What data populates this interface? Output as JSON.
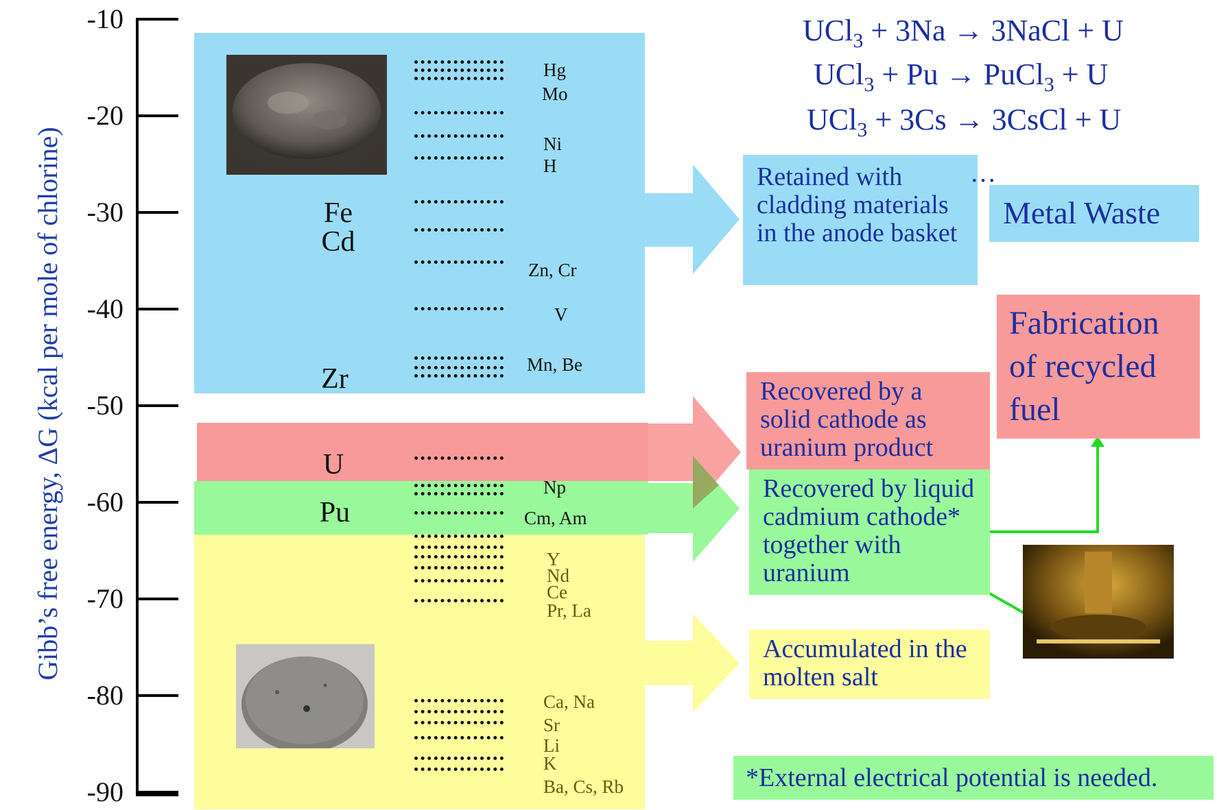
{
  "y_axis": {
    "title": "Gibb’s free energy, ΔG (kcal per mole of chlorine)",
    "ticks": [
      "-10",
      "-20",
      "-30",
      "-40",
      "-50",
      "-60",
      "-70",
      "-80",
      "-90"
    ]
  },
  "bands": {
    "blue_big": [
      "Fe",
      "Cd",
      "Zr"
    ],
    "blue_small": [
      "Hg",
      "Mo",
      "Ni",
      "H",
      "Zn, Cr",
      "V",
      "Mn, Be"
    ],
    "red_big": "U",
    "green_big": "Pu",
    "green_small": [
      "Np",
      "Cm, Am"
    ],
    "yellow_small": [
      "Y",
      "Nd",
      "Ce",
      "Pr, La",
      "Ca, Na",
      "Sr",
      "Li",
      "K",
      "Ba, Cs, Rb"
    ]
  },
  "equations": [
    {
      "a": "UCl",
      "sub": "3",
      "b": " + 3Na → 3NaCl + U"
    },
    {
      "a": "UCl",
      "sub": "3",
      "b": " +  Pu → PuCl",
      "sub2": "3",
      "c": " + U"
    },
    {
      "a": "UCl",
      "sub": "3",
      "b": " + 3Cs → 3CsCl + U"
    }
  ],
  "ellipsis": "…",
  "boxes": {
    "retained": "Retained with cladding materials in the anode basket",
    "metal_waste": "Metal Waste",
    "fabrication": "Fabrication of recycled fuel",
    "solid_cathode": "Recovered by a solid cathode as uranium product",
    "liquid_cathode": "Recovered by liquid cadmium cathode* together with uranium",
    "molten_salt": "Accumulated in the molten salt",
    "footnote": "*External electrical potential is needed."
  },
  "colors": {
    "blue": "#9adcf5",
    "red": "#f99a9a",
    "green": "#99f99a",
    "yellow": "#fefd9c",
    "arrow_green_line": "#22dd22",
    "text_blue": "#1a2fa0",
    "yellow_text": "#6a5a10"
  }
}
